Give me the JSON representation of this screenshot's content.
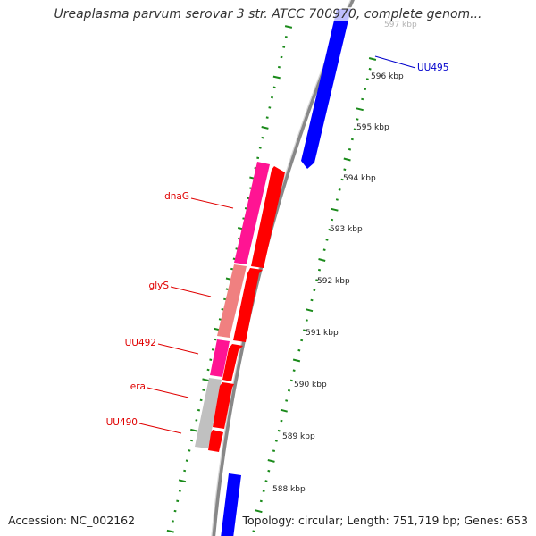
{
  "title": "Ureaplasma parvum serovar 3 str. ATCC 700970, complete genom...",
  "accession": "Accession: NC_002162",
  "summary": "Topology: circular; Length: 751,719 bp; Genes: 653",
  "colors": {
    "backbone": "#8a8a8a",
    "tick": "#1a8a1a",
    "forward_gene": "#0000ff",
    "reverse_gene": "#ff0000",
    "rna_pink": "#ff1493",
    "rna_salmon": "#f08080",
    "rna_gray": "#c0c0c0",
    "label_red": "#e00000",
    "label_blue": "#0000cc"
  },
  "scale_labels": [
    "597 kbp",
    "596 kbp",
    "595 kbp",
    "594 kbp",
    "593 kbp",
    "592 kbp",
    "591 kbp",
    "590 kbp",
    "589 kbp",
    "588 kbp"
  ],
  "gene_labels": [
    {
      "text": "UU495",
      "color": "#0000cc"
    },
    {
      "text": "dnaG",
      "color": "#e00000"
    },
    {
      "text": "glyS",
      "color": "#e00000"
    },
    {
      "text": "UU492",
      "color": "#e00000"
    },
    {
      "text": "era",
      "color": "#e00000"
    },
    {
      "text": "UU490",
      "color": "#e00000"
    }
  ]
}
